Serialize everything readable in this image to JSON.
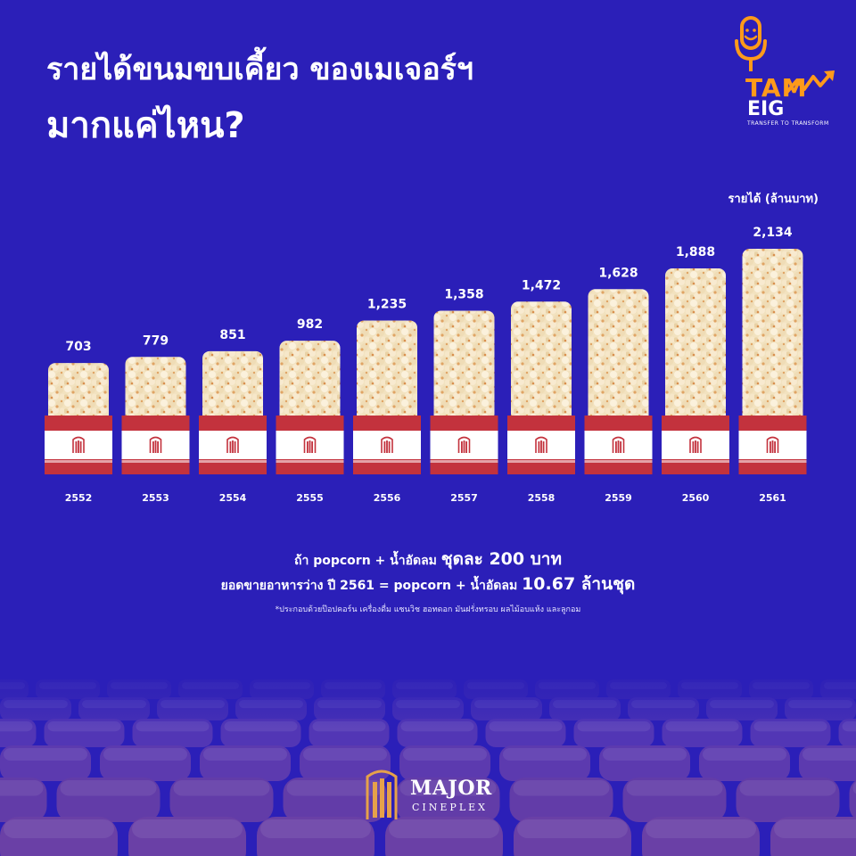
{
  "title": {
    "line1": "รายได้ขนมขบเคี้ยว ของเมเจอร์ฯ",
    "line2": "มากแค่ไหน?"
  },
  "logo": {
    "word": "TAM",
    "sub": "EIG",
    "tagline": "TRANSFER TO TRANSFORM",
    "icon": "microphone-icon",
    "accent": "#ff9a1a"
  },
  "unit_label": "รายได้ (ล้านบาท)",
  "chart_data": {
    "type": "bar",
    "categories": [
      "2552",
      "2553",
      "2554",
      "2555",
      "2556",
      "2557",
      "2558",
      "2559",
      "2560",
      "2561"
    ],
    "values": [
      703,
      779,
      851,
      982,
      1235,
      1358,
      1472,
      1628,
      1888,
      2134
    ],
    "value_labels": [
      "703",
      "779",
      "851",
      "982",
      "1,235",
      "1,358",
      "1,472",
      "1,628",
      "1,888",
      "2,134"
    ],
    "ylabel": "รายได้ (ล้านบาท)",
    "title": "รายได้ขนมขบเคี้ยว ของเมเจอร์ฯ มากแค่ไหน?",
    "colors": {
      "background": "#2b1fb8",
      "popcorn": "#f2e2bf",
      "popcorn_shade": "#e0a464",
      "bucket_red": "#c3323d",
      "bucket_band": "#ffffff"
    }
  },
  "notes": {
    "line1_prefix": "ถ้า popcorn + น้ำอัดลม ",
    "line1_emph": "ชุดละ 200 บาท",
    "line2_prefix": "ยอดขายอาหารว่าง ปี 2561 = popcorn + น้ำอัดลม ",
    "line2_emph": "10.67 ล้านชุด",
    "footnote": "*ประกอบด้วยป๊อปคอร์น เครื่องดื่ม แซนวิช ฮอทดอก มันฝรั่งทรอบ ผลไม้อบแห้ง และลูกอม"
  },
  "brand": {
    "name": "MAJOR",
    "sub": "CINEPLEX"
  }
}
